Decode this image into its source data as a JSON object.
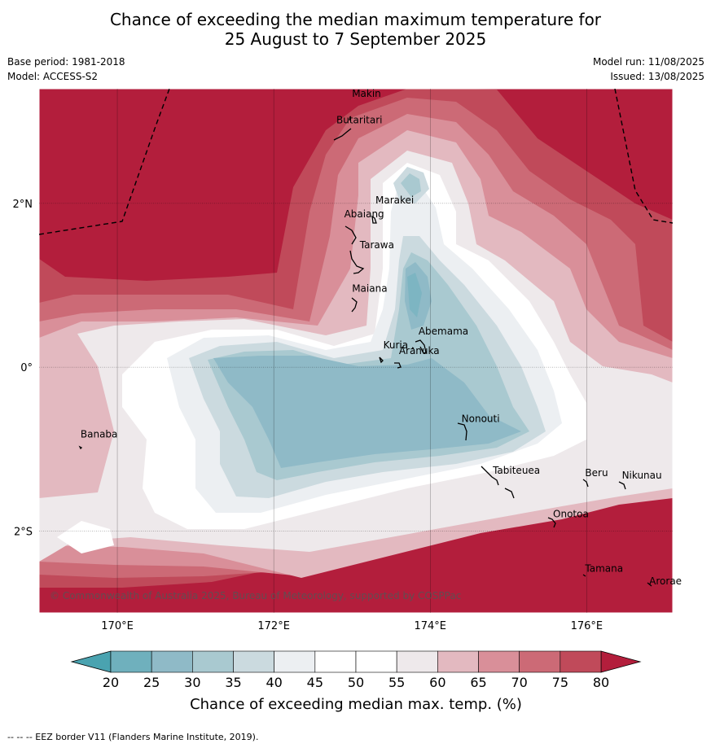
{
  "title": {
    "line1": "Chance of exceeding the median maximum temperature for",
    "line2": "25 August to 7 September 2025"
  },
  "meta": {
    "base_period": "Base period: 1981-2018",
    "model": "Model: ACCESS-S2",
    "model_run": "Model run: 11/08/2025",
    "issued": "Issued: 13/08/2025"
  },
  "map": {
    "lon_range": [
      169,
      177.1
    ],
    "lat_range": [
      -3,
      3.4
    ],
    "lon_ticks": [
      {
        "value": 170,
        "label": "170°E"
      },
      {
        "value": 172,
        "label": "172°E"
      },
      {
        "value": 174,
        "label": "174°E"
      },
      {
        "value": 176,
        "label": "176°E"
      }
    ],
    "lat_ticks": [
      {
        "value": 2,
        "label": "2°N"
      },
      {
        "value": 0,
        "label": "0°"
      },
      {
        "value": -2,
        "label": "2°S"
      }
    ],
    "places": [
      {
        "name": "Makin",
        "lon": 173.0,
        "lat": 3.3
      },
      {
        "name": "Butaritari",
        "lon": 172.8,
        "lat": 2.98
      },
      {
        "name": "Marakei",
        "lon": 173.3,
        "lat": 2.0
      },
      {
        "name": "Abaiang",
        "lon": 172.9,
        "lat": 1.83
      },
      {
        "name": "Tarawa",
        "lon": 173.1,
        "lat": 1.45
      },
      {
        "name": "Maiana",
        "lon": 173.0,
        "lat": 0.92
      },
      {
        "name": "Abemama",
        "lon": 173.85,
        "lat": 0.4
      },
      {
        "name": "Kuria",
        "lon": 173.4,
        "lat": 0.23
      },
      {
        "name": "Aranuka",
        "lon": 173.6,
        "lat": 0.16
      },
      {
        "name": "Banaba",
        "lon": 169.53,
        "lat": -0.86
      },
      {
        "name": "Nonouti",
        "lon": 174.4,
        "lat": -0.67
      },
      {
        "name": "Tabiteuea",
        "lon": 174.8,
        "lat": -1.3
      },
      {
        "name": "Beru",
        "lon": 175.98,
        "lat": -1.33
      },
      {
        "name": "Nikunau",
        "lon": 176.45,
        "lat": -1.36
      },
      {
        "name": "Onotoa",
        "lon": 175.57,
        "lat": -1.83
      },
      {
        "name": "Tamana",
        "lon": 175.98,
        "lat": -2.5
      },
      {
        "name": "Arorae",
        "lon": 176.8,
        "lat": -2.65
      }
    ],
    "copyright": "© Commonwealth of Australia 2025, Bureau of Meteorology, supported by COSPPac"
  },
  "colorbar": {
    "levels": [
      20,
      25,
      30,
      35,
      40,
      45,
      50,
      55,
      60,
      65,
      70,
      75,
      80
    ],
    "colors": [
      "#6fb0bd",
      "#8fbac7",
      "#a9c9d0",
      "#cbdadf",
      "#eceff2",
      "#ffffff",
      "#ffffff",
      "#eee9eb",
      "#e3b9c0",
      "#d98f99",
      "#cc6a76",
      "#c04a5a"
    ],
    "under_color": "#4aa3b0",
    "over_color": "#b31e3c",
    "label": "Chance of exceeding median max. temp. (%)"
  },
  "footer": "--  --  -- EEZ border V11 (Flanders Marine Institute, 2019)."
}
